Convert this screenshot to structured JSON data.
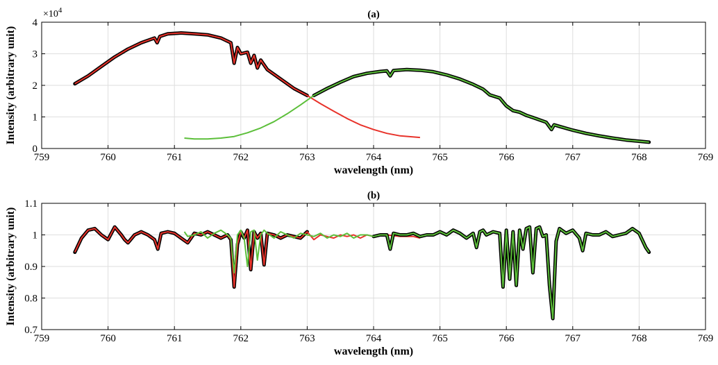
{
  "colors": {
    "red": "#e8322a",
    "green": "#5cbf3a",
    "outline": "#000000",
    "grid": "#dedede",
    "axis": "#000000"
  },
  "chart_data": [
    {
      "type": "line",
      "title": "(a)",
      "xlabel": "wavelength (nm)",
      "ylabel": "Intensity (arbitrary unit)",
      "exponent_label": "×10",
      "exponent_power": "4",
      "xlim": [
        759,
        769
      ],
      "ylim": [
        0,
        40000
      ],
      "xticks": [
        759,
        760,
        761,
        762,
        763,
        764,
        765,
        766,
        767,
        768,
        769
      ],
      "yticks": [
        0,
        10000,
        20000,
        30000,
        40000
      ],
      "ytick_labels": [
        "0",
        "1",
        "2",
        "3",
        "4"
      ],
      "grid": true,
      "series": [
        {
          "color": "red",
          "outlined_range": [
            759.5,
            763.1
          ],
          "x": [
            759.5,
            759.7,
            759.9,
            760.1,
            760.3,
            760.5,
            760.7,
            760.74,
            760.78,
            760.9,
            761.1,
            761.3,
            761.5,
            761.7,
            761.85,
            761.9,
            761.95,
            762.0,
            762.1,
            762.15,
            762.2,
            762.25,
            762.3,
            762.4,
            762.6,
            762.8,
            763.0,
            763.2,
            763.4,
            763.6,
            763.8,
            764.0,
            764.2,
            764.4,
            764.7
          ],
          "y": [
            20500,
            23000,
            26000,
            29000,
            31500,
            33500,
            35000,
            33500,
            35500,
            36300,
            36600,
            36300,
            36000,
            35000,
            33500,
            27000,
            32000,
            30000,
            30500,
            27000,
            29500,
            25500,
            28000,
            25000,
            22000,
            19000,
            16800,
            14200,
            11800,
            9500,
            7500,
            6000,
            4800,
            4000,
            3500
          ]
        },
        {
          "color": "green",
          "outlined_range": [
            763.0,
            768.15
          ],
          "x": [
            761.15,
            761.3,
            761.5,
            761.7,
            761.9,
            762.1,
            762.3,
            762.5,
            762.7,
            762.9,
            763.1,
            763.3,
            763.5,
            763.7,
            763.9,
            764.1,
            764.2,
            764.25,
            764.3,
            764.5,
            764.7,
            764.9,
            765.1,
            765.3,
            765.5,
            765.65,
            765.75,
            765.9,
            766.0,
            766.1,
            766.2,
            766.3,
            766.4,
            766.6,
            766.68,
            766.72,
            766.8,
            767.0,
            767.2,
            767.4,
            767.6,
            767.8,
            768.15
          ],
          "y": [
            3300,
            3000,
            3000,
            3300,
            3800,
            5000,
            6500,
            8500,
            11000,
            13800,
            16800,
            19000,
            21000,
            22800,
            23800,
            24400,
            24600,
            23000,
            24700,
            25000,
            24800,
            24300,
            23300,
            22000,
            20300,
            18800,
            17000,
            16000,
            13500,
            12000,
            11500,
            10500,
            9800,
            8300,
            6000,
            7500,
            7000,
            5800,
            4800,
            4000,
            3300,
            2700,
            2000
          ]
        }
      ]
    },
    {
      "type": "line",
      "title": "(b)",
      "xlabel": "wavelength (nm)",
      "ylabel": "Intensity (arbitrary unit)",
      "xlim": [
        759,
        769
      ],
      "ylim": [
        0.7,
        1.1
      ],
      "xticks": [
        759,
        760,
        761,
        762,
        763,
        764,
        765,
        766,
        767,
        768,
        769
      ],
      "yticks": [
        0.7,
        0.8,
        0.9,
        1.0,
        1.1
      ],
      "ytick_labels": [
        "0.7",
        "0.8",
        "0.9",
        "1",
        "1.1"
      ],
      "grid": true,
      "series": [
        {
          "color": "red",
          "outlined_range": [
            759.5,
            763.0
          ],
          "x": [
            759.5,
            759.6,
            759.7,
            759.8,
            759.9,
            760.0,
            760.1,
            760.2,
            760.25,
            760.3,
            760.4,
            760.5,
            760.6,
            760.7,
            760.75,
            760.8,
            760.9,
            761.0,
            761.1,
            761.2,
            761.3,
            761.4,
            761.5,
            761.6,
            761.7,
            761.8,
            761.85,
            761.9,
            761.95,
            762.0,
            762.05,
            762.1,
            762.15,
            762.2,
            762.25,
            762.3,
            762.35,
            762.4,
            762.5,
            762.6,
            762.7,
            762.8,
            762.9,
            763.0,
            763.1,
            763.2,
            763.3,
            763.4,
            763.5,
            763.6,
            763.7,
            763.8,
            763.9,
            764.0,
            764.2,
            764.4,
            764.6,
            764.7
          ],
          "y": [
            0.945,
            0.99,
            1.015,
            1.02,
            1.0,
            0.985,
            1.025,
            1.0,
            0.985,
            0.975,
            1.0,
            1.01,
            1.0,
            0.985,
            0.955,
            1.005,
            1.01,
            1.005,
            0.99,
            0.975,
            1.005,
            1.0,
            1.01,
            1.0,
            0.99,
            1.0,
            0.985,
            0.835,
            0.97,
            1.01,
            0.99,
            1.015,
            0.89,
            1.01,
            0.99,
            1.005,
            0.905,
            1.005,
            1.0,
            0.99,
            1.0,
            0.995,
            0.99,
            1.01,
            0.985,
            1.0,
            0.995,
            0.99,
            1.0,
            0.995,
            1.0,
            0.99,
            1.0,
            0.995,
            1.0,
            0.995,
            0.995,
            0.99
          ]
        },
        {
          "color": "green",
          "outlined_range": [
            764.0,
            768.15
          ],
          "x": [
            761.15,
            761.2,
            761.3,
            761.4,
            761.5,
            761.6,
            761.7,
            761.8,
            761.85,
            761.9,
            761.95,
            762.0,
            762.05,
            762.1,
            762.15,
            762.2,
            762.25,
            762.3,
            762.35,
            762.4,
            762.5,
            762.6,
            762.7,
            762.8,
            762.9,
            763.0,
            763.1,
            763.2,
            763.3,
            763.4,
            763.5,
            763.6,
            763.7,
            763.8,
            763.9,
            764.0,
            764.1,
            764.2,
            764.25,
            764.3,
            764.4,
            764.5,
            764.6,
            764.7,
            764.8,
            764.9,
            765.0,
            765.1,
            765.2,
            765.3,
            765.4,
            765.5,
            765.55,
            765.6,
            765.65,
            765.7,
            765.8,
            765.9,
            765.95,
            766.0,
            766.05,
            766.1,
            766.15,
            766.2,
            766.25,
            766.3,
            766.35,
            766.4,
            766.45,
            766.5,
            766.55,
            766.6,
            766.65,
            766.7,
            766.75,
            766.8,
            766.9,
            767.0,
            767.1,
            767.15,
            767.2,
            767.3,
            767.4,
            767.5,
            767.6,
            767.7,
            767.8,
            767.9,
            768.0,
            768.1,
            768.15
          ],
          "y": [
            1.01,
            0.995,
            1.0,
            1.01,
            0.99,
            1.005,
            1.015,
            1.0,
            0.99,
            0.88,
            1.0,
            1.015,
            0.99,
            0.9,
            1.01,
            1.015,
            0.92,
            1.0,
            1.015,
            1.005,
            0.99,
            1.01,
            1.0,
            0.99,
            1.005,
            1.0,
            0.995,
            1.005,
            0.99,
            1.0,
            0.995,
            1.005,
            0.99,
            1.0,
            1.0,
            0.995,
            1.0,
            1.0,
            0.955,
            1.005,
            1.0,
            1.0,
            1.005,
            0.995,
            1.0,
            1.0,
            1.01,
            1.0,
            1.015,
            1.005,
            0.99,
            1.005,
            0.96,
            1.01,
            1.015,
            1.0,
            1.01,
            1.005,
            0.835,
            1.015,
            0.86,
            1.01,
            0.84,
            1.015,
            0.955,
            1.02,
            1.025,
            0.88,
            1.02,
            1.025,
            0.995,
            1.0,
            0.84,
            0.735,
            0.98,
            1.02,
            1.005,
            1.015,
            0.99,
            0.95,
            1.005,
            1.0,
            1.0,
            1.01,
            0.995,
            1.0,
            1.005,
            1.02,
            1.005,
            0.96,
            0.945
          ]
        }
      ]
    }
  ]
}
